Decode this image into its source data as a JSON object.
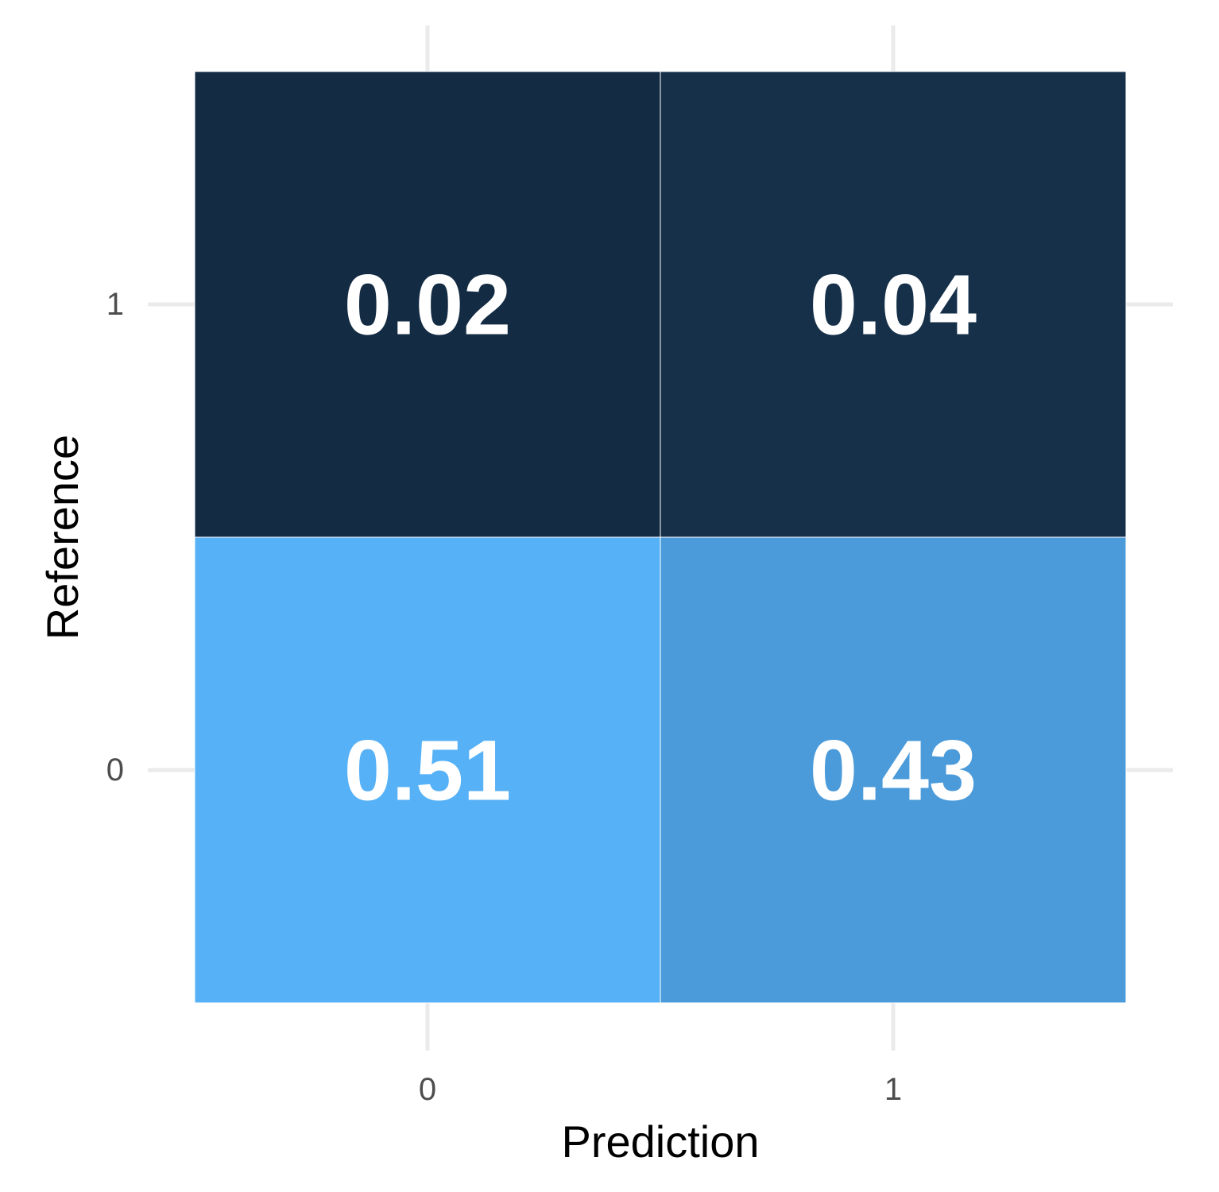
{
  "chart_data": {
    "type": "heatmap",
    "title": "",
    "xlabel": "Prediction",
    "ylabel": "Reference",
    "x_categories": [
      "0",
      "1"
    ],
    "y_categories": [
      "0",
      "1"
    ],
    "cells": [
      {
        "x": "0",
        "y": "1",
        "value": 0.02,
        "label": "0.02"
      },
      {
        "x": "1",
        "y": "1",
        "value": 0.04,
        "label": "0.04"
      },
      {
        "x": "0",
        "y": "0",
        "value": 0.51,
        "label": "0.51"
      },
      {
        "x": "1",
        "y": "0",
        "value": 0.43,
        "label": "0.43"
      }
    ],
    "color_low": "#132B43",
    "color_high": "#56B1F7",
    "grid": true,
    "legend": "none"
  }
}
